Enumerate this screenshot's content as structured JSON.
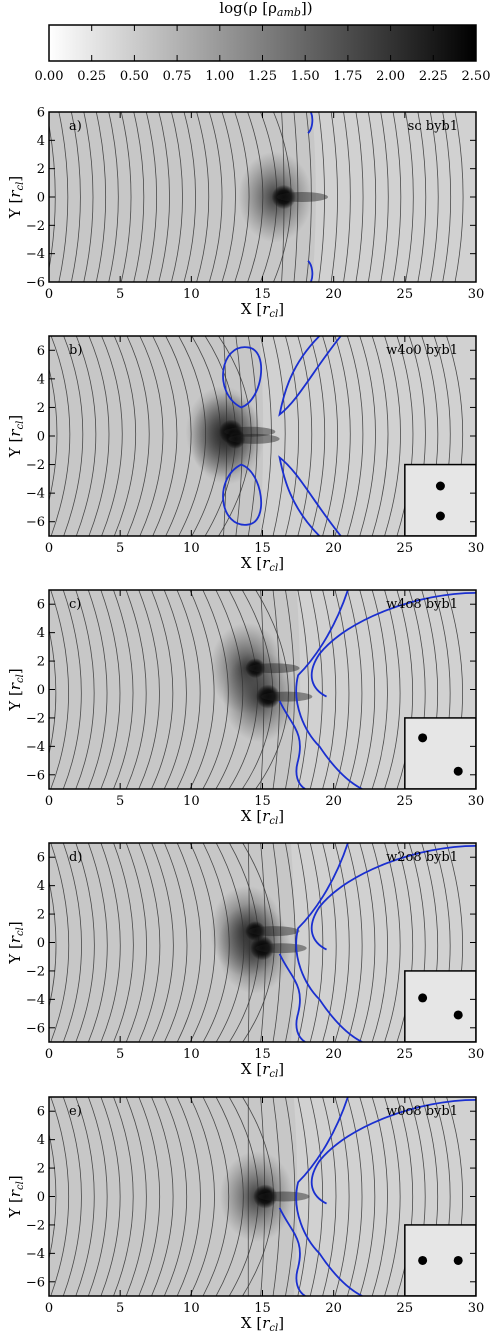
{
  "colorbar": {
    "title": "log(ρ [ρ_amb])",
    "title_main": "log(ρ [ρ",
    "title_sub": "amb",
    "title_end": "])",
    "range": [
      0,
      2.5
    ],
    "ticks": [
      "0.00",
      "0.25",
      "0.50",
      "0.75",
      "1.00",
      "1.25",
      "1.50",
      "1.75",
      "2.00",
      "2.25",
      "2.50"
    ],
    "colormap": [
      "#ffffff",
      "#000000"
    ]
  },
  "chart_data": [
    {
      "type": "heatmap",
      "panel": "a)",
      "run": "sc byb1",
      "xlabel": "X [r_cl]",
      "ylabel": "Y [r_cl]",
      "xlim": [
        0,
        30
      ],
      "ylim": [
        -6,
        6
      ],
      "xticks": [
        0,
        5,
        10,
        15,
        20,
        25,
        30
      ],
      "yticks": [
        -6,
        -4,
        -2,
        0,
        2,
        4,
        6
      ],
      "clumps": [
        [
          16.5,
          0
        ]
      ],
      "inset": null,
      "background_log_rho": 0.55,
      "contour_color": "#1a2fd0",
      "fieldline_color": "#333333"
    },
    {
      "type": "heatmap",
      "panel": "b)",
      "run": "w4o0 byb1",
      "xlabel": "X [r_cl]",
      "ylabel": "Y [r_cl]",
      "xlim": [
        0,
        30
      ],
      "ylim": [
        -7,
        7
      ],
      "xticks": [
        0,
        5,
        10,
        15,
        20,
        25,
        30
      ],
      "yticks": [
        -6,
        -4,
        -2,
        0,
        2,
        4,
        6
      ],
      "clumps": [
        [
          12.8,
          0.3
        ],
        [
          13.1,
          -0.2
        ]
      ],
      "inset": {
        "dots": [
          [
            0.5,
            0.7
          ],
          [
            0.5,
            0.28
          ]
        ]
      },
      "background_log_rho": 0.55,
      "contour_color": "#1a2fd0",
      "fieldline_color": "#333333"
    },
    {
      "type": "heatmap",
      "panel": "c)",
      "run": "w4o8 byb1",
      "xlabel": "X [r_cl]",
      "ylabel": "Y [r_cl]",
      "xlim": [
        0,
        30
      ],
      "ylim": [
        -7,
        7
      ],
      "xticks": [
        0,
        5,
        10,
        15,
        20,
        25,
        30
      ],
      "yticks": [
        -6,
        -4,
        -2,
        0,
        2,
        4,
        6
      ],
      "clumps": [
        [
          15.4,
          -0.5
        ],
        [
          14.5,
          1.5
        ]
      ],
      "inset": {
        "dots": [
          [
            0.25,
            0.72
          ],
          [
            0.75,
            0.25
          ]
        ]
      },
      "background_log_rho": 0.55,
      "contour_color": "#1a2fd0",
      "fieldline_color": "#333333"
    },
    {
      "type": "heatmap",
      "panel": "d)",
      "run": "w2o8 byb1",
      "xlabel": "X [r_cl]",
      "ylabel": "Y [r_cl]",
      "xlim": [
        0,
        30
      ],
      "ylim": [
        -7,
        7
      ],
      "xticks": [
        0,
        5,
        10,
        15,
        20,
        25,
        30
      ],
      "yticks": [
        -6,
        -4,
        -2,
        0,
        2,
        4,
        6
      ],
      "clumps": [
        [
          15.0,
          -0.4
        ],
        [
          14.5,
          0.8
        ]
      ],
      "inset": {
        "dots": [
          [
            0.25,
            0.62
          ],
          [
            0.75,
            0.38
          ]
        ]
      },
      "background_log_rho": 0.55,
      "contour_color": "#1a2fd0",
      "fieldline_color": "#333333"
    },
    {
      "type": "heatmap",
      "panel": "e)",
      "run": "w0o8 byb1",
      "xlabel": "X [r_cl]",
      "ylabel": "Y [r_cl]",
      "xlim": [
        0,
        30
      ],
      "ylim": [
        -7,
        7
      ],
      "xticks": [
        0,
        5,
        10,
        15,
        20,
        25,
        30
      ],
      "yticks": [
        -6,
        -4,
        -2,
        0,
        2,
        4,
        6
      ],
      "clumps": [
        [
          15.2,
          0
        ]
      ],
      "inset": {
        "dots": [
          [
            0.25,
            0.5
          ],
          [
            0.75,
            0.5
          ]
        ]
      },
      "background_log_rho": 0.55,
      "contour_color": "#1a2fd0",
      "fieldline_color": "#333333"
    }
  ]
}
